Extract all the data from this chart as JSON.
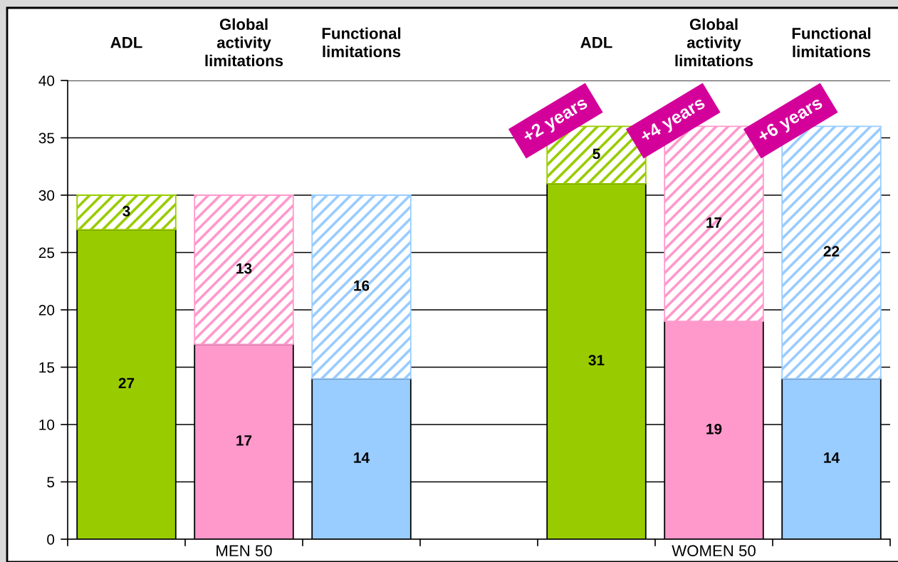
{
  "chart_data": {
    "type": "bar",
    "stacked": true,
    "categories": [
      "ADL",
      "Global\nactivity\nlimitations",
      "Functional\nlimitations",
      null,
      "ADL",
      "Global\nactivity\nlimitations",
      "Functional\nlimitations"
    ],
    "series": [
      {
        "colors": [
          "#99cc00",
          "#ff99cc",
          "#99ccff",
          null,
          "#99cc00",
          "#ff99cc",
          "#99ccff"
        ],
        "values": [
          27,
          17,
          14,
          null,
          31,
          19,
          14
        ]
      },
      {
        "colors": [
          "#99cc00",
          "#ff99cc",
          "#99ccff",
          null,
          "#99cc00",
          "#ff99cc",
          "#99ccff"
        ],
        "values": [
          3,
          13,
          16,
          null,
          5,
          17,
          22
        ]
      }
    ],
    "ylim": [
      0,
      40
    ],
    "yticks": [
      0,
      5,
      10,
      15,
      20,
      25,
      30,
      35,
      40
    ],
    "grid": "y",
    "data_labels": true,
    "annotations": [
      "MEN 50",
      "WOMEN 50",
      "+2 years",
      "+4 years",
      "+6 years"
    ]
  }
}
